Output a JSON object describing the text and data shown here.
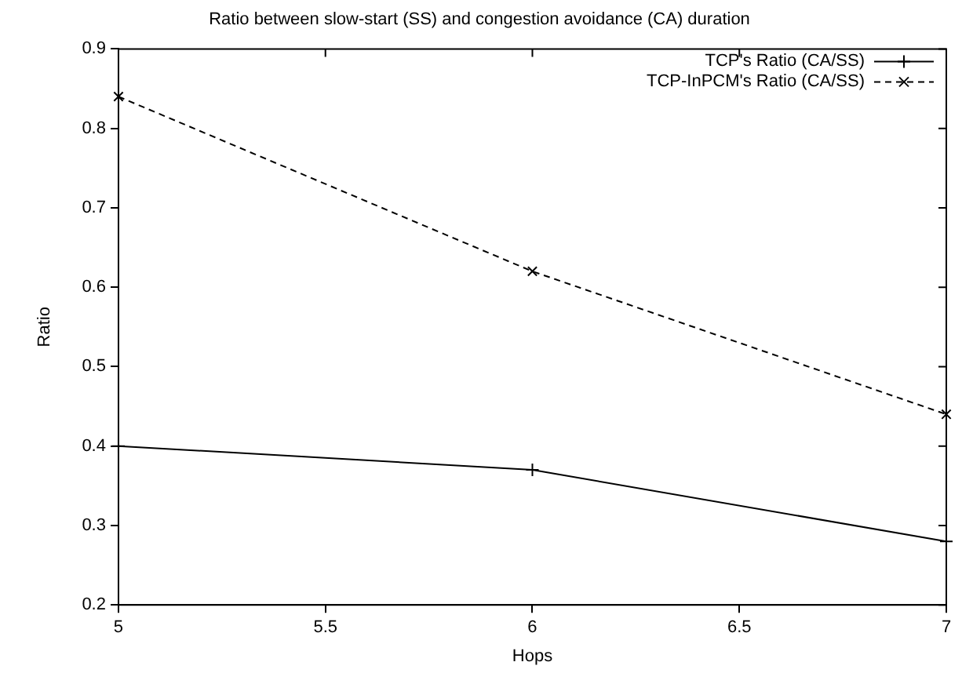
{
  "chart_data": {
    "type": "line",
    "title": "Ratio between slow-start (SS) and congestion avoidance (CA) duration",
    "xlabel": "Hops",
    "ylabel": "Ratio",
    "x": [
      5,
      6,
      7
    ],
    "xlim": [
      5,
      7
    ],
    "xticks": [
      5,
      5.5,
      6,
      6.5,
      7
    ],
    "ylim": [
      0.2,
      0.9
    ],
    "yticks": [
      0.2,
      0.3,
      0.4,
      0.5,
      0.6,
      0.7,
      0.8,
      0.9
    ],
    "grid": false,
    "legend": "top right",
    "marker": "cross",
    "series": [
      {
        "name": "TCP's Ratio (CA/SS)",
        "color": "#000000",
        "line_style": "solid",
        "values": [
          0.4,
          0.37,
          0.28
        ]
      },
      {
        "name": "TCP-InPCM's Ratio (CA/SS)",
        "color": "#000000",
        "line_style": "dashed",
        "values": [
          0.84,
          0.62,
          0.44
        ]
      }
    ]
  }
}
